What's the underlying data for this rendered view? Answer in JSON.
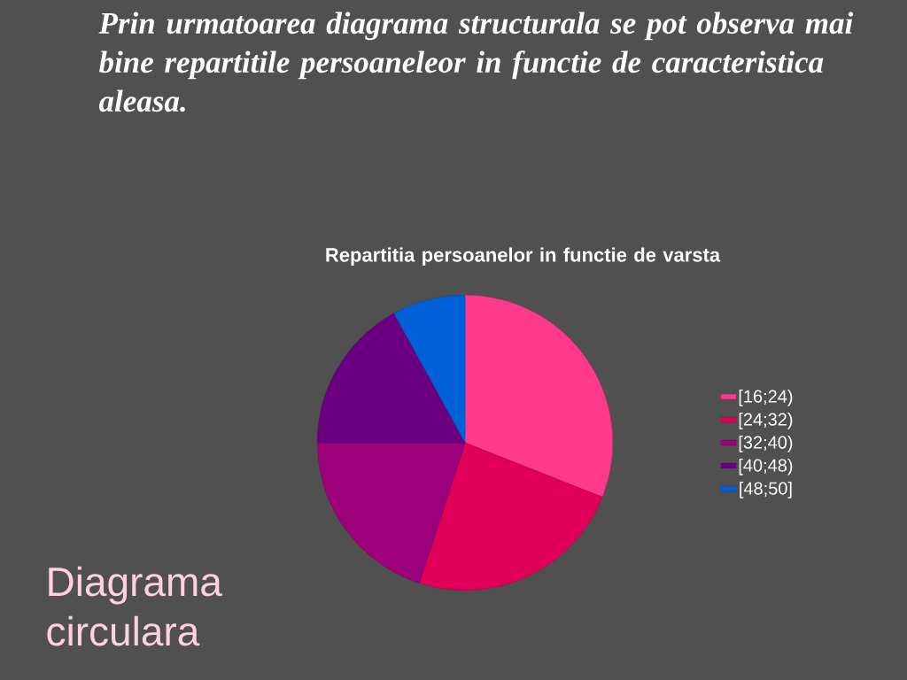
{
  "chart_data": {
    "type": "pie",
    "title": "Repartitia persoanelor in functie de varsta",
    "categories": [
      "[16;24)",
      "[24;32)",
      "[32;40)",
      "[40;48)",
      "[48;50]"
    ],
    "values": [
      31,
      24,
      20,
      17,
      8
    ],
    "colors": [
      "#ff3a8c",
      "#e0005a",
      "#9c007a",
      "#6a007f",
      "#0060d8"
    ],
    "legend": "right",
    "annotations": [
      "Prin urmatoarea diagrama structurala se pot observa mai bine repartitile persoaneleor in functie de caracteristica aleasa.",
      "Diagrama circulara"
    ]
  }
}
